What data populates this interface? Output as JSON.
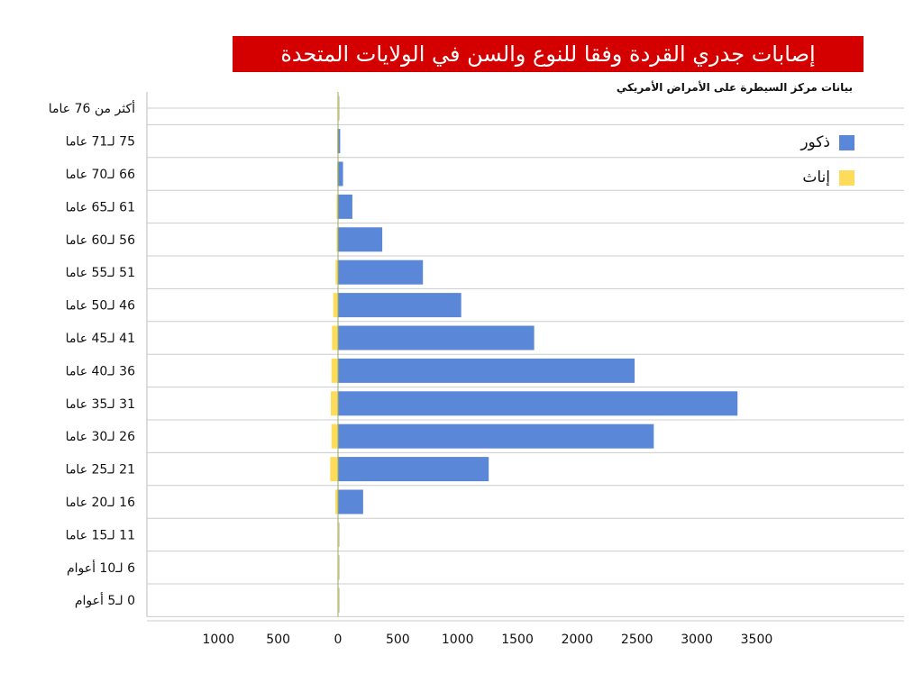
{
  "chart_data": {
    "type": "bar",
    "orientation": "horizontal",
    "title": "إصابات جدري القردة وفقا للنوع والسن في الولايات المتحدة",
    "subtitle": "بيانات مركز السيطرة على الأمراض الأمريكي",
    "categories": [
      "أكثر من 76 عاما",
      "75 لـ71 عاما",
      "66 لـ70 عاما",
      "61 لـ65 عاما",
      "56 لـ60 عاما",
      "51 لـ55 عاما",
      "46 لـ50 عاما",
      "41 لـ45 عاما",
      "36 لـ40 عاما",
      "31 لـ35 عاما",
      "26 لـ30 عاما",
      "21 لـ25 عاما",
      "16 لـ20 عاما",
      "11 لـ15 عاما",
      "6 لـ10 أعوام",
      "0 لـ5 أعوام"
    ],
    "series": [
      {
        "name": "ذكور",
        "color": "#5b87d9",
        "values": [
          4,
          18,
          42,
          120,
          370,
          710,
          1030,
          1640,
          2480,
          3340,
          2640,
          1260,
          210,
          4,
          4,
          6
        ]
      },
      {
        "name": "إناث",
        "color": "#fcdc5a",
        "values": [
          2,
          8,
          8,
          12,
          12,
          20,
          40,
          50,
          55,
          60,
          55,
          65,
          22,
          2,
          2,
          2
        ]
      }
    ],
    "xticks": [
      "1000",
      "500",
      "0",
      "500",
      "1000",
      "1500",
      "2000",
      "2500",
      "3000",
      "3500"
    ],
    "xlim": [
      -1000,
      3500
    ],
    "grid": true,
    "legend": "top-right"
  }
}
